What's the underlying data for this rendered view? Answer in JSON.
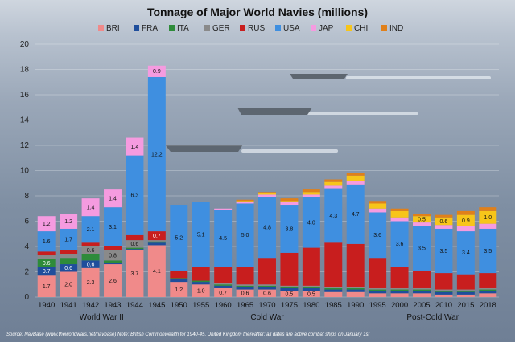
{
  "chart_data": {
    "type": "bar",
    "stacked": true,
    "title": "Tonnage of Major World Navies (millions)",
    "categories": [
      "1940",
      "1941",
      "1942",
      "1943",
      "1944",
      "1945",
      "1950",
      "1955",
      "1960",
      "1965",
      "1970",
      "1975",
      "1980",
      "1985",
      "1990",
      "1995",
      "2000",
      "2005",
      "2010",
      "2015",
      "2018"
    ],
    "ylim": [
      0,
      20
    ],
    "yticks": [
      0,
      2,
      4,
      6,
      8,
      10,
      12,
      14,
      16,
      18,
      20
    ],
    "legend_position": "top",
    "series": [
      {
        "name": "BRI",
        "color": "#f08a8a",
        "values": [
          1.7,
          2.0,
          2.3,
          2.6,
          3.7,
          4.1,
          1.2,
          1.0,
          0.7,
          0.6,
          0.6,
          0.5,
          0.5,
          0.4,
          0.4,
          0.3,
          0.3,
          0.3,
          0.2,
          0.2,
          0.3
        ]
      },
      {
        "name": "FRA",
        "color": "#1f4e9c",
        "values": [
          0.7,
          0.6,
          0.6,
          0.1,
          0.1,
          0.2,
          0.2,
          0.2,
          0.2,
          0.2,
          0.2,
          0.2,
          0.2,
          0.2,
          0.2,
          0.2,
          0.2,
          0.2,
          0.2,
          0.2,
          0.2
        ]
      },
      {
        "name": "ITA",
        "color": "#2e8b3a",
        "values": [
          0.6,
          0.5,
          0.5,
          0.2,
          0.1,
          0.1,
          0.1,
          0.1,
          0.1,
          0.1,
          0.1,
          0.1,
          0.1,
          0.1,
          0.1,
          0.1,
          0.1,
          0.1,
          0.1,
          0.1,
          0.1
        ]
      },
      {
        "name": "GER",
        "color": "#8a8a8a",
        "values": [
          0.3,
          0.3,
          0.6,
          0.8,
          0.6,
          0.1,
          0.0,
          0.0,
          0.1,
          0.1,
          0.1,
          0.1,
          0.1,
          0.1,
          0.1,
          0.1,
          0.1,
          0.1,
          0.1,
          0.1,
          0.1
        ]
      },
      {
        "name": "RUS",
        "color": "#c81e1e",
        "values": [
          0.3,
          0.3,
          0.3,
          0.3,
          0.4,
          0.7,
          0.6,
          1.1,
          1.3,
          1.4,
          2.1,
          2.6,
          3.0,
          3.5,
          3.4,
          2.4,
          1.7,
          1.4,
          1.3,
          1.2,
          1.2
        ]
      },
      {
        "name": "USA",
        "color": "#3f8fe0",
        "values": [
          1.6,
          1.7,
          2.1,
          3.1,
          6.3,
          12.2,
          5.2,
          5.1,
          4.5,
          5.0,
          4.8,
          3.8,
          4.0,
          4.3,
          4.7,
          3.6,
          3.6,
          3.5,
          3.5,
          3.4,
          3.5
        ]
      },
      {
        "name": "JAP",
        "color": "#f59be0",
        "values": [
          1.2,
          1.2,
          1.4,
          1.4,
          1.4,
          0.9,
          0.0,
          0.0,
          0.1,
          0.1,
          0.2,
          0.2,
          0.2,
          0.2,
          0.3,
          0.3,
          0.3,
          0.3,
          0.3,
          0.4,
          0.4
        ]
      },
      {
        "name": "CHI",
        "color": "#f7c51a",
        "values": [
          0.0,
          0.0,
          0.0,
          0.0,
          0.0,
          0.0,
          0.0,
          0.0,
          0.0,
          0.1,
          0.1,
          0.1,
          0.2,
          0.3,
          0.4,
          0.4,
          0.5,
          0.5,
          0.6,
          0.9,
          1.0
        ]
      },
      {
        "name": "IND",
        "color": "#e0801a",
        "values": [
          0.0,
          0.0,
          0.0,
          0.0,
          0.0,
          0.0,
          0.0,
          0.0,
          0.0,
          0.1,
          0.1,
          0.2,
          0.2,
          0.2,
          0.2,
          0.2,
          0.2,
          0.2,
          0.2,
          0.3,
          0.3
        ]
      }
    ],
    "labels": {
      "BRI": [
        "1.7",
        "2.0",
        "2.3",
        "2.6",
        "3.7",
        "4.1",
        "1.2",
        "1.0",
        "0.7",
        "0.6",
        "0.6",
        "0.5",
        "0.5",
        "",
        "",
        "",
        "",
        "",
        "",
        "",
        ""
      ],
      "FRA": [
        "0.7",
        "0.6",
        "0.6",
        "",
        "",
        "",
        "",
        "",
        "",
        "",
        "",
        "",
        "",
        "",
        "",
        "",
        "",
        "",
        "",
        "",
        ""
      ],
      "ITA": [
        "0.6",
        "",
        "",
        "",
        "",
        "",
        "",
        "",
        "",
        "",
        "",
        "",
        "",
        "",
        "",
        "",
        "",
        "",
        "",
        "",
        ""
      ],
      "GER": [
        "",
        "",
        "0.6",
        "0.8",
        "0.6",
        "",
        "",
        "",
        "",
        "",
        "",
        "",
        "",
        "",
        "",
        "",
        "",
        "",
        "",
        "",
        ""
      ],
      "RUS": [
        "",
        "",
        "",
        "",
        "",
        "0.7",
        "",
        "",
        "",
        "",
        "",
        "",
        "",
        "",
        "",
        "",
        "",
        "",
        "",
        "",
        ""
      ],
      "USA": [
        "1.6",
        "1.7",
        "2.1",
        "3.1",
        "6.3",
        "12.2",
        "5.2",
        "5.1",
        "4.5",
        "5.0",
        "4.8",
        "3.8",
        "4.0",
        "4.3",
        "4.7",
        "3.6",
        "3.6",
        "3.5",
        "3.5",
        "3.4",
        "3.5"
      ],
      "JAP": [
        "1.2",
        "1.2",
        "1.4",
        "1.4",
        "1.4",
        "0.9",
        "",
        "",
        "",
        "",
        "",
        "",
        "",
        "",
        "",
        "",
        "",
        "",
        "",
        "",
        ""
      ],
      "CHI": [
        "",
        "",
        "",
        "",
        "",
        "",
        "",
        "",
        "",
        "",
        "",
        "",
        "",
        "",
        "",
        "",
        "",
        "0.5",
        "0.6",
        "0.9",
        "1.0"
      ],
      "IND": [
        "",
        "",
        "",
        "",
        "",
        "",
        "",
        "",
        "",
        "",
        "",
        "",
        "",
        "",
        "",
        "",
        "",
        "",
        "",
        "",
        ""
      ]
    },
    "eras": [
      {
        "label": "World War II",
        "from": 0,
        "to": 5
      },
      {
        "label": "Cold War",
        "from": 6,
        "to": 14
      },
      {
        "label": "Post-Cold War",
        "from": 15,
        "to": 20
      }
    ],
    "source": "Source: NavBase (www.theworldwars.net/navbase)  Note: British Commonwealth  for 1940-45, United Kingdom thereafter; all dates are active combat ships on January  1st"
  }
}
